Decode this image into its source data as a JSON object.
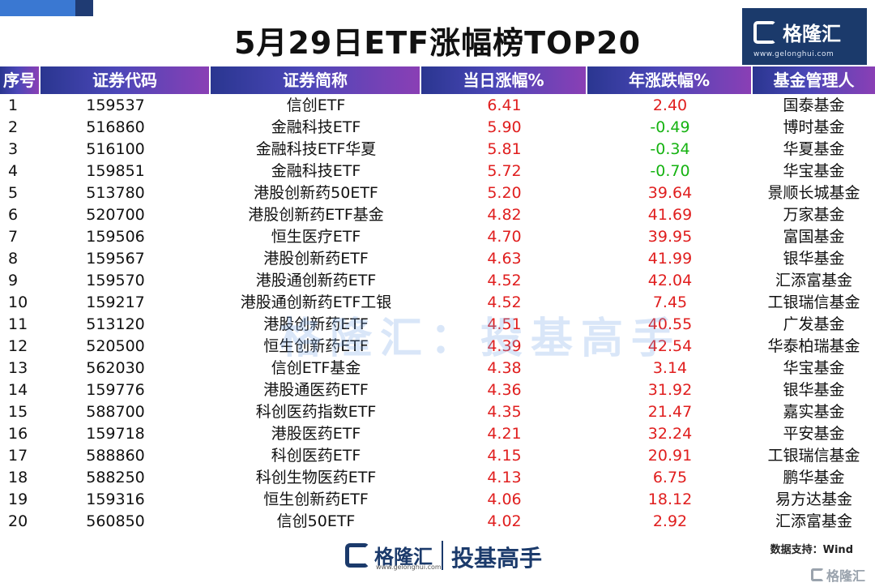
{
  "title": "5月29日ETF涨幅榜TOP20",
  "logo": {
    "name": "格隆汇",
    "url": "www.gelonghui.com"
  },
  "watermark": "格隆汇：投基高手",
  "headers": [
    "序号",
    "证券代码",
    "证券简称",
    "当日涨幅%",
    "年涨跌幅%",
    "基金管理人"
  ],
  "rows": [
    {
      "rank": "1",
      "code": "159537",
      "name": "信创ETF",
      "day": "6.41",
      "year": "2.40",
      "mgr": "国泰基金"
    },
    {
      "rank": "2",
      "code": "516860",
      "name": "金融科技ETF",
      "day": "5.90",
      "year": "-0.49",
      "mgr": "博时基金"
    },
    {
      "rank": "3",
      "code": "516100",
      "name": "金融科技ETF华夏",
      "day": "5.81",
      "year": "-0.34",
      "mgr": "华夏基金"
    },
    {
      "rank": "4",
      "code": "159851",
      "name": "金融科技ETF",
      "day": "5.72",
      "year": "-0.70",
      "mgr": "华宝基金"
    },
    {
      "rank": "5",
      "code": "513780",
      "name": "港股创新药50ETF",
      "day": "5.20",
      "year": "39.64",
      "mgr": "景顺长城基金"
    },
    {
      "rank": "6",
      "code": "520700",
      "name": "港股创新药ETF基金",
      "day": "4.82",
      "year": "41.69",
      "mgr": "万家基金"
    },
    {
      "rank": "7",
      "code": "159506",
      "name": "恒生医疗ETF",
      "day": "4.70",
      "year": "39.95",
      "mgr": "富国基金"
    },
    {
      "rank": "8",
      "code": "159567",
      "name": "港股创新药ETF",
      "day": "4.63",
      "year": "41.99",
      "mgr": "银华基金"
    },
    {
      "rank": "9",
      "code": "159570",
      "name": "港股通创新药ETF",
      "day": "4.52",
      "year": "42.04",
      "mgr": "汇添富基金"
    },
    {
      "rank": "10",
      "code": "159217",
      "name": "港股通创新药ETF工银",
      "day": "4.52",
      "year": "7.45",
      "mgr": "工银瑞信基金"
    },
    {
      "rank": "11",
      "code": "513120",
      "name": "港股创新药ETF",
      "day": "4.51",
      "year": "40.55",
      "mgr": "广发基金"
    },
    {
      "rank": "12",
      "code": "520500",
      "name": "恒生创新药ETF",
      "day": "4.39",
      "year": "42.54",
      "mgr": "华泰柏瑞基金"
    },
    {
      "rank": "13",
      "code": "562030",
      "name": "信创ETF基金",
      "day": "4.38",
      "year": "3.14",
      "mgr": "华宝基金"
    },
    {
      "rank": "14",
      "code": "159776",
      "name": "港股通医药ETF",
      "day": "4.36",
      "year": "31.92",
      "mgr": "银华基金"
    },
    {
      "rank": "15",
      "code": "588700",
      "name": "科创医药指数ETF",
      "day": "4.35",
      "year": "21.47",
      "mgr": "嘉实基金"
    },
    {
      "rank": "16",
      "code": "159718",
      "name": "港股医药ETF",
      "day": "4.21",
      "year": "32.24",
      "mgr": "平安基金"
    },
    {
      "rank": "17",
      "code": "588860",
      "name": "科创医药ETF",
      "day": "4.15",
      "year": "20.91",
      "mgr": "工银瑞信基金"
    },
    {
      "rank": "18",
      "code": "588250",
      "name": "科创生物医药ETF",
      "day": "4.13",
      "year": "6.75",
      "mgr": "鹏华基金"
    },
    {
      "rank": "19",
      "code": "159316",
      "name": "恒生创新药ETF",
      "day": "4.06",
      "year": "18.12",
      "mgr": "易方达基金"
    },
    {
      "rank": "20",
      "code": "560850",
      "name": "信创50ETF",
      "day": "4.02",
      "year": "2.92",
      "mgr": "汇添富基金"
    }
  ],
  "footer": {
    "logo_name": "格隆汇",
    "logo_url": "www.gelonghui.com",
    "slogan": "投基高手",
    "source": "数据支持：Wind",
    "corner_mark": "格隆汇"
  },
  "colors": {
    "positive": "#e01e1e",
    "negative": "#16b312",
    "brand": "#1b3a6b"
  }
}
